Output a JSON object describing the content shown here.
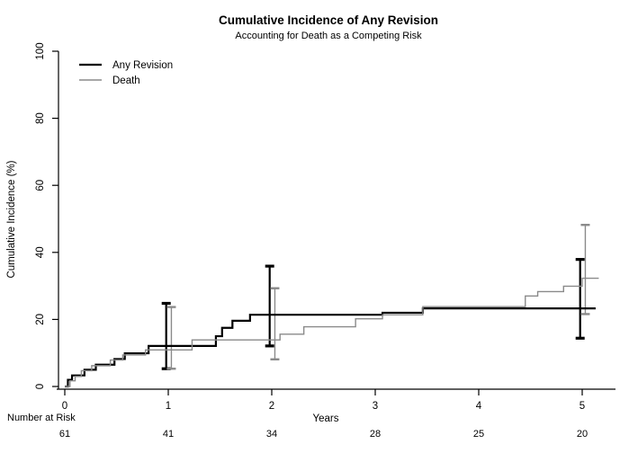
{
  "colors": {
    "background": "#ffffff",
    "axis": "#000000",
    "any_revision": "#000000",
    "death": "#8a8a8a"
  },
  "chart_data": {
    "type": "line",
    "subtype": "step-cumulative-incidence",
    "title": "Cumulative Incidence of Any Revision",
    "subtitle": "Accounting for Death as a Competing Risk",
    "xlabel": "Years",
    "ylabel": "Cumulative Incidence (%)",
    "xlim": [
      0,
      5
    ],
    "ylim": [
      0,
      100
    ],
    "xticks": [
      0,
      1,
      2,
      3,
      4,
      5
    ],
    "yticks": [
      0,
      20,
      40,
      60,
      80,
      100
    ],
    "grid": false,
    "legend": {
      "position": "top-left",
      "entries": [
        {
          "label": "Any Revision",
          "color": "#000000",
          "width": 2.2
        },
        {
          "label": "Death",
          "color": "#8a8a8a",
          "width": 1.4
        }
      ]
    },
    "series": [
      {
        "name": "Any Revision",
        "style": "step",
        "color": "#000000",
        "width": 2.2,
        "points": [
          [
            0,
            0
          ],
          [
            0.03,
            2
          ],
          [
            0.07,
            3.3
          ],
          [
            0.19,
            5
          ],
          [
            0.3,
            6.5
          ],
          [
            0.48,
            8.2
          ],
          [
            0.58,
            9.9
          ],
          [
            0.81,
            12.1
          ],
          [
            1.46,
            15.0
          ],
          [
            1.52,
            17.5
          ],
          [
            1.62,
            19.6
          ],
          [
            1.79,
            21.4
          ],
          [
            3.07,
            22.0
          ],
          [
            3.46,
            23.3
          ],
          [
            5.13,
            23.3
          ]
        ]
      },
      {
        "name": "Death",
        "style": "step",
        "color": "#8a8a8a",
        "width": 1.4,
        "points": [
          [
            0,
            0
          ],
          [
            0.05,
            1.7
          ],
          [
            0.1,
            3.0
          ],
          [
            0.16,
            4.7
          ],
          [
            0.26,
            6.2
          ],
          [
            0.44,
            7.9
          ],
          [
            0.56,
            9.4
          ],
          [
            0.78,
            10.9
          ],
          [
            1.23,
            13.9
          ],
          [
            2.08,
            15.6
          ],
          [
            2.31,
            17.8
          ],
          [
            2.81,
            20.2
          ],
          [
            3.07,
            21.4
          ],
          [
            3.46,
            23.8
          ],
          [
            4.45,
            27.0
          ],
          [
            4.57,
            28.3
          ],
          [
            4.82,
            29.9
          ],
          [
            5.0,
            32.3
          ],
          [
            5.16,
            32.3
          ]
        ]
      }
    ],
    "error_bars": [
      {
        "series": "Any Revision",
        "x": 0.98,
        "low": 5.3,
        "high": 24.8
      },
      {
        "series": "Death",
        "x": 1.03,
        "low": 5.3,
        "high": 23.7
      },
      {
        "series": "Any Revision",
        "x": 1.98,
        "low": 12.1,
        "high": 35.9
      },
      {
        "series": "Death",
        "x": 2.03,
        "low": 8.1,
        "high": 29.3
      },
      {
        "series": "Any Revision",
        "x": 4.98,
        "low": 14.4,
        "high": 37.9
      },
      {
        "series": "Death",
        "x": 5.03,
        "low": 21.6,
        "high": 48.2
      }
    ],
    "number_at_risk": {
      "label": "Number at Risk",
      "x": [
        0,
        1,
        2,
        3,
        4,
        5
      ],
      "values": [
        61,
        41,
        34,
        28,
        25,
        20
      ]
    }
  }
}
